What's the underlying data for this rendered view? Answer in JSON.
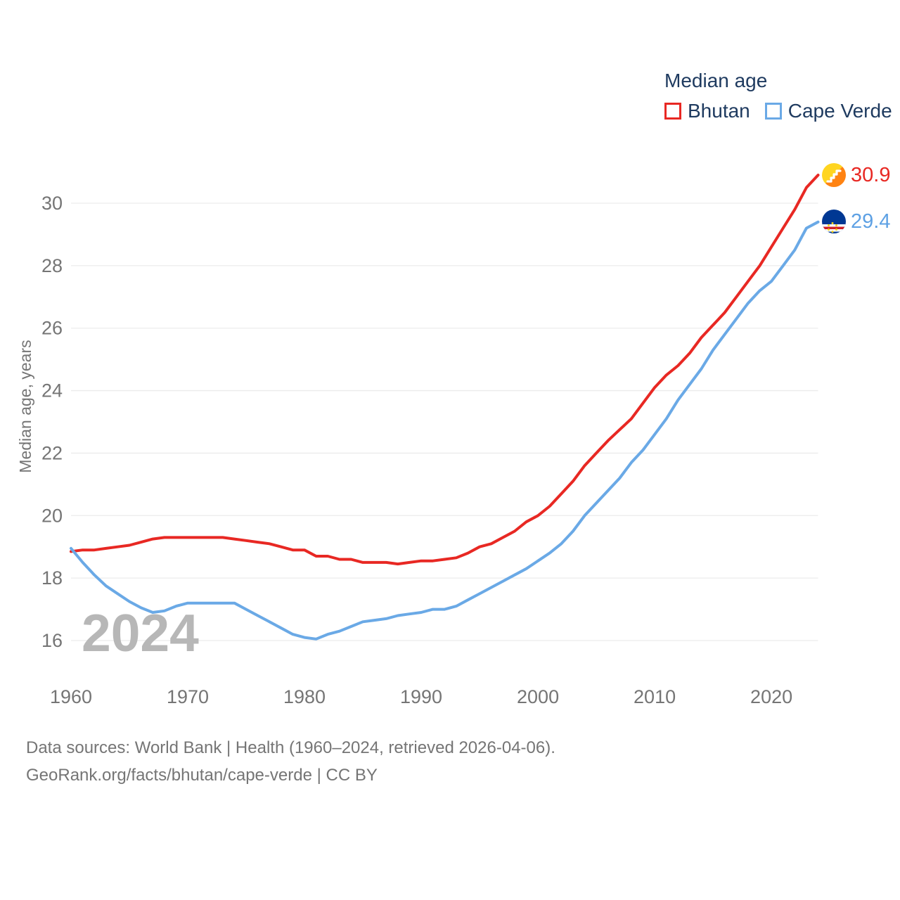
{
  "legend": {
    "title": "Median age",
    "items": [
      {
        "label": "Bhutan",
        "color": "#e82823"
      },
      {
        "label": "Cape Verde",
        "color": "#6aa9e6"
      }
    ]
  },
  "watermark": "2024",
  "footer": {
    "line1": "Data sources: World Bank | Health (1960–2024, retrieved 2026-04-06).",
    "line2": "GeoRank.org/facts/bhutan/cape-verde | CC BY"
  },
  "chart_data": {
    "type": "line",
    "title": "Median age",
    "xlabel": "",
    "ylabel": "Median age, years",
    "xlim": [
      1960,
      2024
    ],
    "ylim": [
      15.5,
      31.3
    ],
    "x_ticks": [
      1960,
      1970,
      1980,
      1990,
      2000,
      2010,
      2020
    ],
    "y_ticks": [
      16,
      18,
      20,
      22,
      24,
      26,
      28,
      30
    ],
    "grid": "horizontal",
    "legend_position": "top-right",
    "x": [
      1960,
      1961,
      1962,
      1963,
      1964,
      1965,
      1966,
      1967,
      1968,
      1969,
      1970,
      1971,
      1972,
      1973,
      1974,
      1975,
      1976,
      1977,
      1978,
      1979,
      1980,
      1981,
      1982,
      1983,
      1984,
      1985,
      1986,
      1987,
      1988,
      1989,
      1990,
      1991,
      1992,
      1993,
      1994,
      1995,
      1996,
      1997,
      1998,
      1999,
      2000,
      2001,
      2002,
      2003,
      2004,
      2005,
      2006,
      2007,
      2008,
      2009,
      2010,
      2011,
      2012,
      2013,
      2014,
      2015,
      2016,
      2017,
      2018,
      2019,
      2020,
      2021,
      2022,
      2023,
      2024
    ],
    "series": [
      {
        "name": "Bhutan",
        "color": "#e82823",
        "end_label": "30.9",
        "values": [
          18.85,
          18.9,
          18.9,
          18.95,
          19.0,
          19.05,
          19.15,
          19.25,
          19.3,
          19.3,
          19.3,
          19.3,
          19.3,
          19.3,
          19.25,
          19.2,
          19.15,
          19.1,
          19.0,
          18.9,
          18.9,
          18.7,
          18.7,
          18.6,
          18.6,
          18.5,
          18.5,
          18.5,
          18.45,
          18.5,
          18.55,
          18.55,
          18.6,
          18.65,
          18.8,
          19.0,
          19.1,
          19.3,
          19.5,
          19.8,
          20.0,
          20.3,
          20.7,
          21.1,
          21.6,
          22.0,
          22.4,
          22.75,
          23.1,
          23.6,
          24.1,
          24.5,
          24.8,
          25.2,
          25.7,
          26.1,
          26.5,
          27.0,
          27.5,
          28.0,
          28.6,
          29.2,
          29.8,
          30.5,
          30.9
        ]
      },
      {
        "name": "Cape Verde",
        "color": "#6aa9e6",
        "end_label": "29.4",
        "values": [
          18.95,
          18.5,
          18.1,
          17.75,
          17.5,
          17.25,
          17.05,
          16.9,
          16.95,
          17.1,
          17.2,
          17.2,
          17.2,
          17.2,
          17.2,
          17.0,
          16.8,
          16.6,
          16.4,
          16.2,
          16.1,
          16.05,
          16.2,
          16.3,
          16.45,
          16.6,
          16.65,
          16.7,
          16.8,
          16.85,
          16.9,
          17.0,
          17.0,
          17.1,
          17.3,
          17.5,
          17.7,
          17.9,
          18.1,
          18.3,
          18.55,
          18.8,
          19.1,
          19.5,
          20.0,
          20.4,
          20.8,
          21.2,
          21.7,
          22.1,
          22.6,
          23.1,
          23.7,
          24.2,
          24.7,
          25.3,
          25.8,
          26.3,
          26.8,
          27.2,
          27.5,
          28.0,
          28.5,
          29.2,
          29.4
        ]
      }
    ]
  }
}
